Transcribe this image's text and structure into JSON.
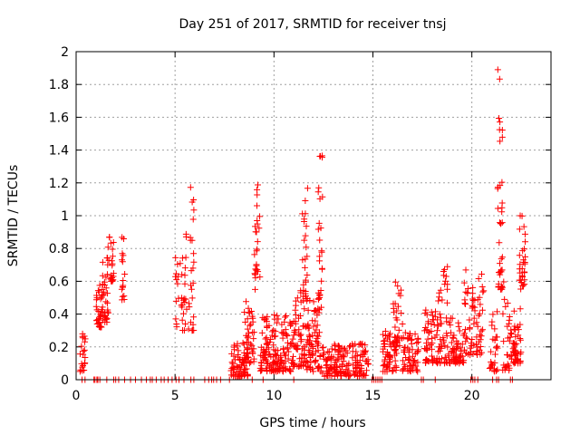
{
  "chart_data": {
    "type": "scatter",
    "title": "Day 251 of 2017, SRMTID for receiver tnsj",
    "xlabel": "GPS time / hours",
    "ylabel": "SRMTID / TECUs",
    "xlim": [
      0,
      24
    ],
    "ylim": [
      0,
      2
    ],
    "xticks": [
      "0",
      "5",
      "10",
      "15",
      "20"
    ],
    "yticks": [
      "0",
      "0.2",
      "0.4",
      "0.6",
      "0.8",
      "1",
      "1.2",
      "1.4",
      "1.6",
      "1.8",
      "2"
    ],
    "grid": true,
    "marker": "+",
    "color": "#ff0000",
    "clusters": [
      {
        "x0": 0.2,
        "x1": 0.5,
        "lo": 0.05,
        "hi": 0.28,
        "n": 22
      },
      {
        "x0": 1.0,
        "x1": 1.3,
        "lo": 0.32,
        "hi": 0.58,
        "n": 30
      },
      {
        "x0": 1.3,
        "x1": 1.65,
        "lo": 0.35,
        "hi": 0.75,
        "n": 35
      },
      {
        "x0": 1.6,
        "x1": 1.9,
        "lo": 0.6,
        "hi": 0.87,
        "n": 22
      },
      {
        "x0": 2.3,
        "x1": 2.5,
        "lo": 0.48,
        "hi": 0.9,
        "n": 16
      },
      {
        "x0": 5.0,
        "x1": 5.5,
        "lo": 0.3,
        "hi": 0.75,
        "n": 28
      },
      {
        "x0": 5.5,
        "x1": 5.95,
        "lo": 0.3,
        "hi": 1.2,
        "n": 32
      },
      {
        "x0": 7.8,
        "x1": 8.7,
        "lo": 0.02,
        "hi": 0.25,
        "n": 70
      },
      {
        "x0": 8.5,
        "x1": 9.0,
        "lo": 0.1,
        "hi": 0.48,
        "n": 45
      },
      {
        "x0": 9.0,
        "x1": 9.3,
        "lo": 0.55,
        "hi": 1.22,
        "n": 26
      },
      {
        "x0": 9.3,
        "x1": 10.9,
        "lo": 0.05,
        "hi": 0.4,
        "n": 150
      },
      {
        "x0": 10.9,
        "x1": 11.6,
        "lo": 0.08,
        "hi": 0.55,
        "n": 70
      },
      {
        "x0": 11.4,
        "x1": 11.7,
        "lo": 0.5,
        "hi": 1.18,
        "n": 20
      },
      {
        "x0": 11.6,
        "x1": 12.4,
        "lo": 0.05,
        "hi": 0.5,
        "n": 80
      },
      {
        "x0": 12.2,
        "x1": 12.45,
        "lo": 0.5,
        "hi": 1.43,
        "n": 24
      },
      {
        "x0": 12.4,
        "x1": 14.8,
        "lo": 0.02,
        "hi": 0.22,
        "n": 160
      },
      {
        "x0": 15.5,
        "x1": 16.2,
        "lo": 0.05,
        "hi": 0.3,
        "n": 60
      },
      {
        "x0": 16.0,
        "x1": 16.5,
        "lo": 0.2,
        "hi": 0.6,
        "n": 30
      },
      {
        "x0": 16.5,
        "x1": 17.3,
        "lo": 0.05,
        "hi": 0.3,
        "n": 60
      },
      {
        "x0": 17.6,
        "x1": 18.3,
        "lo": 0.1,
        "hi": 0.45,
        "n": 60
      },
      {
        "x0": 18.3,
        "x1": 18.8,
        "lo": 0.1,
        "hi": 0.7,
        "n": 45
      },
      {
        "x0": 18.8,
        "x1": 19.6,
        "lo": 0.1,
        "hi": 0.4,
        "n": 60
      },
      {
        "x0": 19.6,
        "x1": 20.6,
        "lo": 0.15,
        "hi": 0.68,
        "n": 70
      },
      {
        "x0": 20.9,
        "x1": 21.3,
        "lo": 0.05,
        "hi": 0.45,
        "n": 26
      },
      {
        "x0": 21.3,
        "x1": 21.55,
        "lo": 0.55,
        "hi": 1.92,
        "n": 40
      },
      {
        "x0": 21.55,
        "x1": 21.9,
        "lo": 0.05,
        "hi": 0.6,
        "n": 22
      },
      {
        "x0": 21.9,
        "x1": 22.5,
        "lo": 0.1,
        "hi": 0.45,
        "n": 55
      },
      {
        "x0": 22.4,
        "x1": 22.7,
        "lo": 0.55,
        "hi": 1.02,
        "n": 30
      }
    ],
    "zero_points": [
      0.3,
      0.45,
      0.9,
      0.95,
      1.05,
      1.1,
      1.2,
      1.55,
      1.9,
      2.0,
      2.15,
      2.45,
      2.75,
      3.0,
      3.3,
      3.55,
      3.75,
      3.85,
      4.05,
      4.3,
      4.45,
      4.65,
      4.85,
      5.05,
      5.2,
      5.45,
      5.8,
      5.95,
      6.5,
      6.7,
      6.85,
      6.95,
      7.1,
      7.3,
      7.75,
      8.9,
      9.45,
      11.0,
      14.95,
      15.05,
      15.15,
      15.25,
      15.35,
      15.45,
      17.45,
      17.55,
      18.15,
      19.95,
      20.05,
      20.15,
      20.3,
      21.05,
      21.25,
      21.35,
      21.95,
      22.05
    ]
  }
}
